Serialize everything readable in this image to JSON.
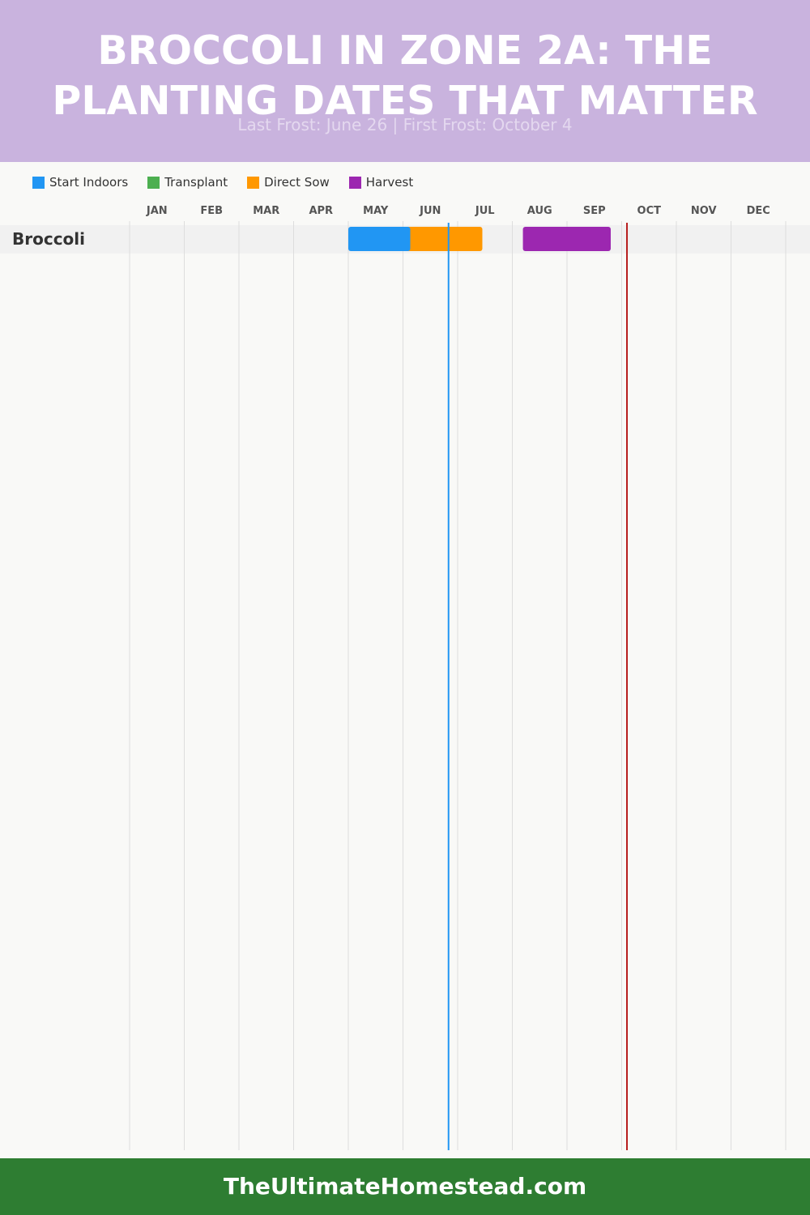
{
  "header": {
    "title": "BROCCOLI IN ZONE 2A: THE PLANTING DATES THAT MATTER",
    "subtitle": "Last Frost: June 26 | First Frost: October 4"
  },
  "footer": {
    "site": "TheUltimateHomestead.com"
  },
  "colors": {
    "header_bg": "#c9b3de",
    "footer_bg": "#2e7d32",
    "start_indoors": "#2196f3",
    "transplant": "#4caf50",
    "direct_sow": "#ff9800",
    "harvest": "#9c27b0",
    "last_frost_line": "#2196f3",
    "first_frost_line": "#b71c1c"
  },
  "chart_data": {
    "type": "gantt",
    "months": [
      "JAN",
      "FEB",
      "MAR",
      "APR",
      "MAY",
      "JUN",
      "JUL",
      "AUG",
      "SEP",
      "OCT",
      "NOV",
      "DEC"
    ],
    "legend": [
      {
        "name": "Start Indoors",
        "color": "#2196f3"
      },
      {
        "name": "Transplant",
        "color": "#4caf50"
      },
      {
        "name": "Direct Sow",
        "color": "#ff9800"
      },
      {
        "name": "Harvest",
        "color": "#9c27b0"
      }
    ],
    "rows": [
      {
        "crop": "Broccoli",
        "bars": [
          {
            "type": "Direct Sow",
            "start": "June 1",
            "end": "July 15"
          },
          {
            "type": "Start Indoors",
            "start": "May 1",
            "end": "June 5"
          },
          {
            "type": "Harvest",
            "start": "August 7",
            "end": "September 25"
          }
        ]
      }
    ],
    "markers": [
      {
        "name": "Last Frost",
        "date": "June 26",
        "color": "#2196f3"
      },
      {
        "name": "First Frost",
        "date": "October 4",
        "color": "#b71c1c"
      }
    ],
    "grid": true
  }
}
